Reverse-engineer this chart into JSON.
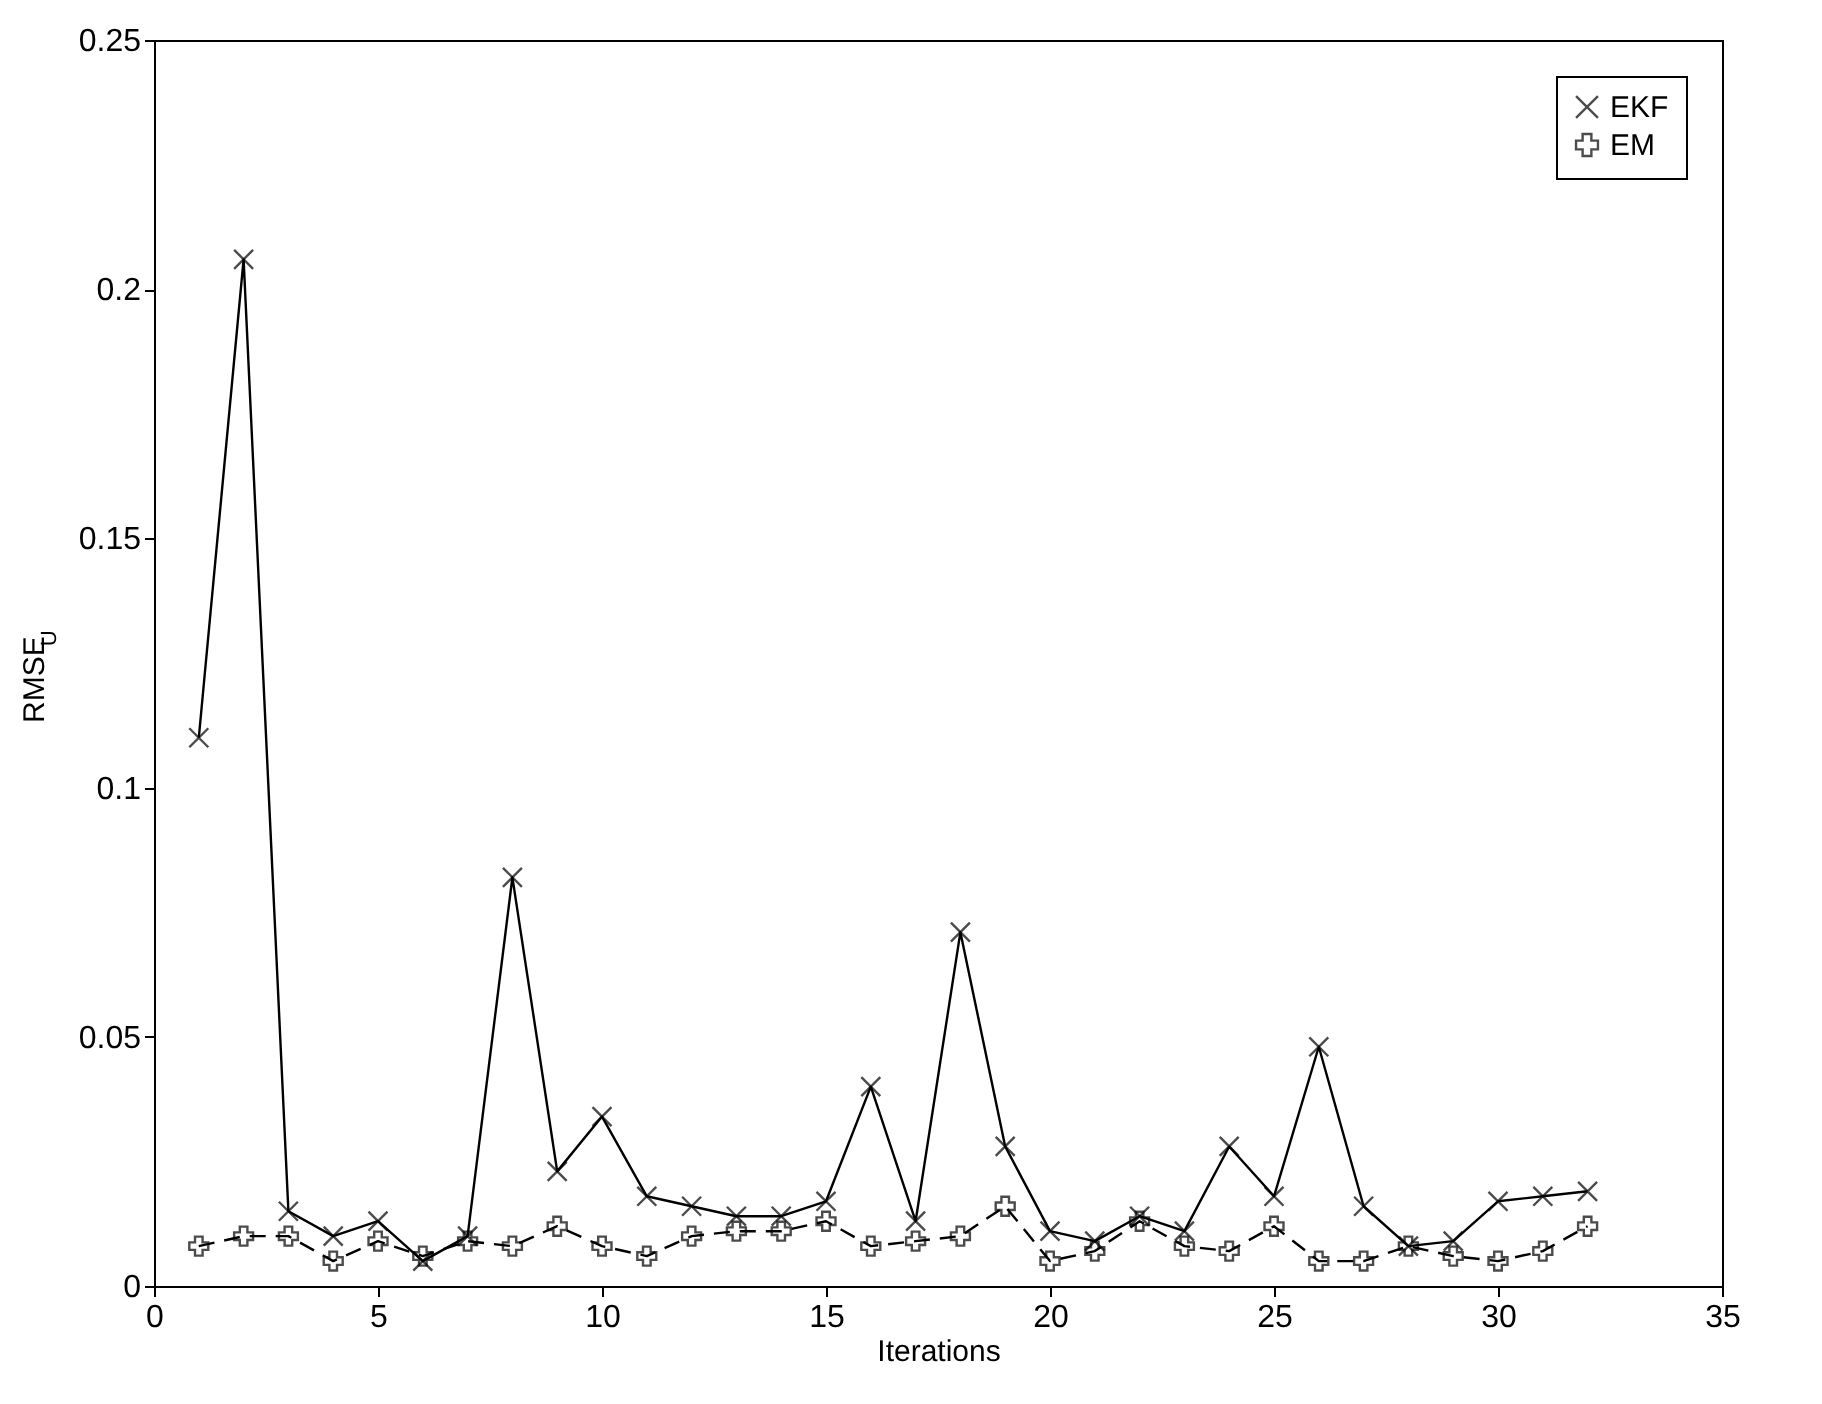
{
  "chart_data": {
    "type": "line",
    "xlabel": "Iterations",
    "ylabel": "RMSE$_{U}$",
    "x": [
      1,
      2,
      3,
      4,
      5,
      6,
      7,
      8,
      9,
      10,
      11,
      12,
      13,
      14,
      15,
      16,
      17,
      18,
      19,
      20,
      21,
      22,
      23,
      24,
      25,
      26,
      27,
      28,
      29,
      30,
      31,
      32
    ],
    "series": [
      {
        "name": "EKF",
        "color": "#000000",
        "line_style": "solid",
        "marker": "x",
        "values": [
          0.11,
          0.206,
          0.015,
          0.01,
          0.013,
          0.005,
          0.01,
          0.082,
          0.023,
          0.034,
          0.018,
          0.016,
          0.014,
          0.014,
          0.017,
          0.04,
          0.013,
          0.071,
          0.028,
          0.011,
          0.009,
          0.014,
          0.011,
          0.028,
          0.018,
          0.048,
          0.016,
          0.008,
          0.009,
          0.017,
          0.018,
          0.019
        ]
      },
      {
        "name": "EM",
        "color": "#000000",
        "line_style": "dashed",
        "marker": "plus",
        "values": [
          0.008,
          0.01,
          0.01,
          0.005,
          0.009,
          0.006,
          0.009,
          0.008,
          0.012,
          0.008,
          0.006,
          0.01,
          0.011,
          0.011,
          0.013,
          0.008,
          0.009,
          0.01,
          0.016,
          0.005,
          0.007,
          0.013,
          0.008,
          0.007,
          0.012,
          0.005,
          0.005,
          0.008,
          0.006,
          0.005,
          0.007,
          0.012
        ]
      }
    ],
    "xlim": [
      0,
      35
    ],
    "xticks": [
      0,
      5,
      10,
      15,
      20,
      25,
      30,
      35
    ],
    "ylim": [
      0,
      0.25
    ],
    "yticks": [
      0,
      0.05,
      0.1,
      0.15,
      0.2,
      0.25
    ],
    "grid": false,
    "legend": "top right"
  }
}
